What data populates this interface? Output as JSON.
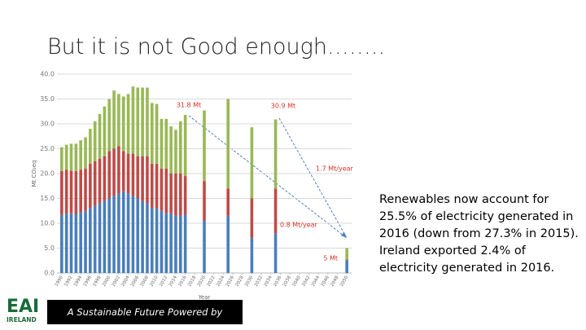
{
  "header": {
    "title": "But it is not Good enough……..",
    "logo": "EAI",
    "logo_sub": "IRELAND"
  },
  "side_text": "Renewables now account for 25.5% of electricity generated in 2016 (down from 27.3% in 2015). Ireland exported 2.4% of electricity generated in 2016.",
  "footer": "A Sustainable Future Powered by Electricity",
  "chart_data": {
    "type": "bar",
    "stacked": true,
    "y_label": "Mt CO₂eq",
    "x_label": "Year",
    "x": [
      1990,
      1991,
      1992,
      1993,
      1994,
      1995,
      1996,
      1997,
      1998,
      1999,
      2000,
      2001,
      2002,
      2003,
      2004,
      2005,
      2006,
      2007,
      2008,
      2009,
      2010,
      2011,
      2012,
      2013,
      2014,
      2015,
      2016,
      2020,
      2025,
      2030,
      2035,
      2050
    ],
    "series": [
      {
        "color": "#4a7ebb",
        "values": [
          11.7,
          11.9,
          12,
          11.8,
          12.2,
          12.5,
          13,
          13.5,
          14,
          14.5,
          15,
          15.5,
          16,
          16.5,
          16,
          15.5,
          15,
          14.5,
          14,
          13,
          13,
          12.5,
          12,
          12,
          11.5,
          11.5,
          11.8,
          10.5,
          11.5,
          7,
          8,
          2.5
        ]
      },
      {
        "color": "#be4b48",
        "values": [
          8.8,
          8.9,
          8.6,
          8.7,
          8.6,
          8.5,
          9,
          9,
          9,
          9,
          9.5,
          9.5,
          9.5,
          8,
          8,
          8.5,
          8.5,
          9,
          9.5,
          9,
          9,
          8.5,
          9,
          8,
          8.5,
          8.5,
          7.7,
          8,
          5.5,
          8,
          9,
          0.2
        ]
      },
      {
        "color": "#98b954",
        "values": [
          4.8,
          5,
          5.4,
          5.5,
          5.9,
          6.3,
          7,
          8,
          9,
          10,
          10.5,
          11.7,
          10.5,
          11,
          12,
          13.5,
          13.8,
          13.8,
          13.8,
          12.2,
          12,
          10,
          10,
          9.5,
          8.8,
          10.5,
          12.3,
          14.2,
          18,
          14.3,
          13.9,
          2.3
        ]
      }
    ],
    "xlim": [
      1989,
      2051
    ],
    "xticks": [
      1990,
      1992,
      1994,
      1996,
      1998,
      2000,
      2002,
      2004,
      2006,
      2008,
      2010,
      2012,
      2014,
      2016,
      2018,
      2020,
      2022,
      2024,
      2026,
      2028,
      2030,
      2032,
      2034,
      2036,
      2038,
      2040,
      2042,
      2044,
      2046,
      2048,
      2050
    ],
    "ylim": [
      0,
      40
    ],
    "yticks": [
      {
        "value": 0,
        "label": "0.0"
      },
      {
        "value": 5,
        "label": "5.0"
      },
      {
        "value": 10,
        "label": "10.0"
      },
      {
        "value": 15,
        "label": "15.0"
      },
      {
        "value": 20,
        "label": "20.0"
      },
      {
        "value": 25,
        "label": "25.0"
      },
      {
        "value": 30,
        "label": "30.0"
      },
      {
        "value": 35,
        "label": "35.0"
      },
      {
        "value": 40,
        "label": "40.0"
      }
    ],
    "grid": true,
    "annotations": [
      "31.8 Mt",
      "30.9 Mt",
      "1.7 Mt/year",
      "0.8 Mt/year",
      "5 Mt"
    ],
    "annotation_color": "#d9322b"
  }
}
